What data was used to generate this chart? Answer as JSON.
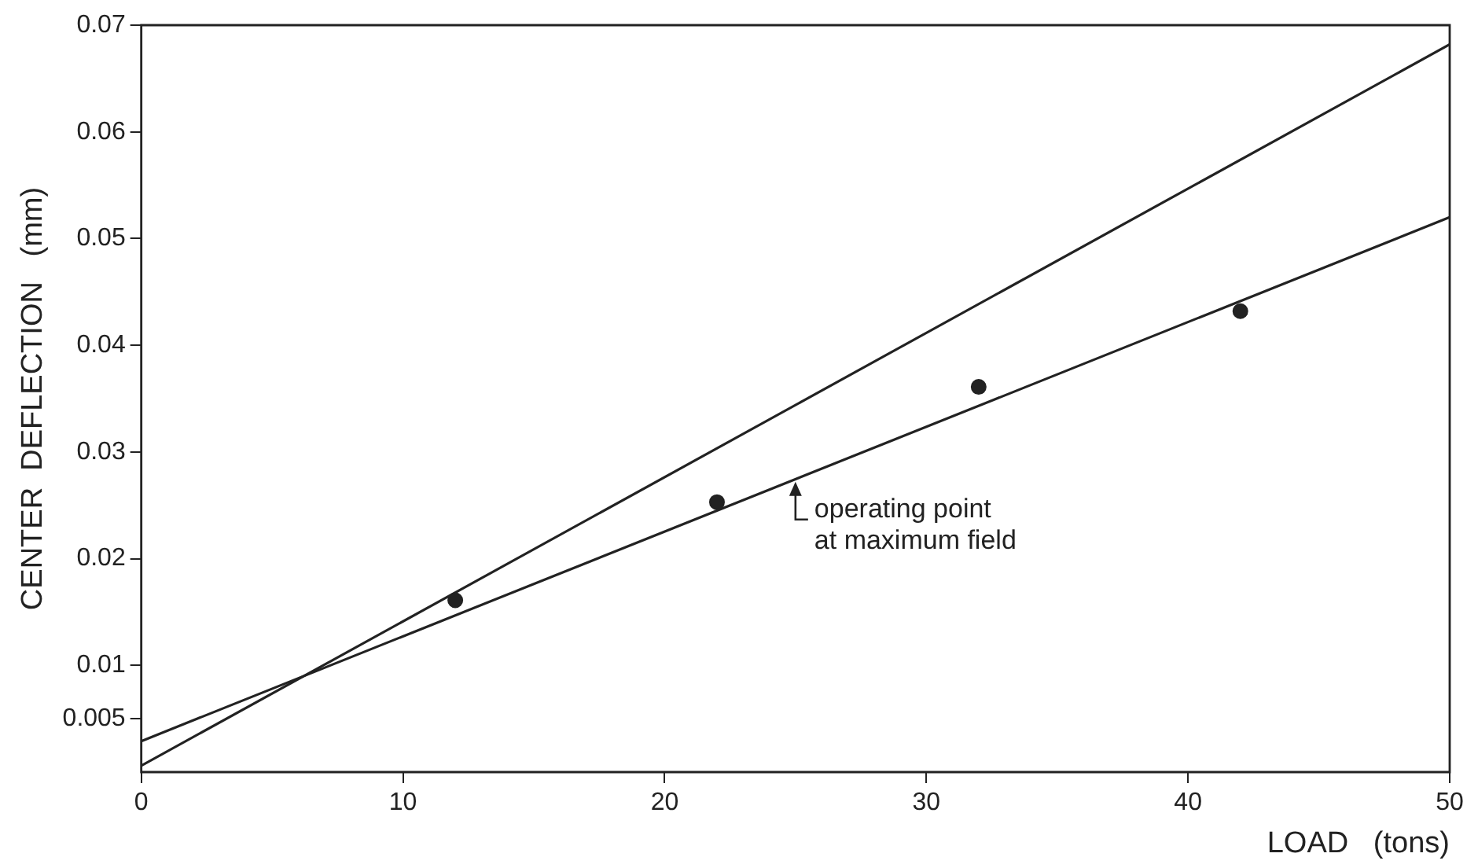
{
  "chart_data": {
    "type": "scatter",
    "xlabel": "LOAD   (tons)",
    "ylabel": "CENTER  DEFLECTION   (mm)",
    "xlim": [
      0,
      50
    ],
    "xticks": [
      0,
      10,
      20,
      30,
      40,
      50
    ],
    "ylim": [
      0,
      0.07
    ],
    "yticks": [
      0.005,
      0.01,
      0.02,
      0.03,
      0.04,
      0.05,
      0.06,
      0.07
    ],
    "grid": false,
    "legend": false,
    "series": [
      {
        "color": "#222222",
        "marker": "circle",
        "x": [
          12,
          22,
          32,
          42
        ],
        "values": [
          0.0161,
          0.0253,
          0.0361,
          0.0432
        ]
      },
      {
        "type": "line",
        "color": "#222222",
        "marker": "none",
        "x": [
          0,
          50
        ],
        "values": [
          0.0006,
          0.0682
        ]
      },
      {
        "type": "line",
        "color": "#222222",
        "marker": "none",
        "x": [
          0,
          50
        ],
        "values": [
          0.0029,
          0.052
        ]
      }
    ],
    "annotations": [
      {
        "text": "operating point\nat maximum field",
        "x": 25,
        "y": 0.0275
      }
    ]
  }
}
